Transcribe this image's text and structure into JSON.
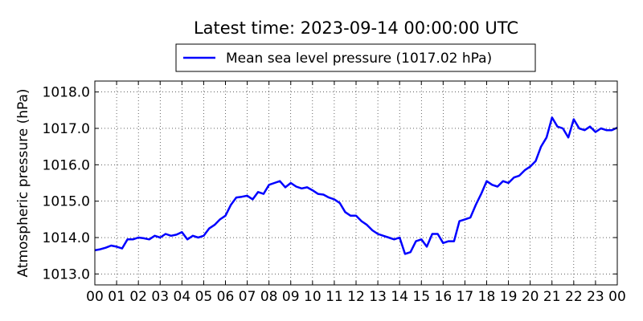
{
  "chart_data": {
    "type": "line",
    "title": "Latest time: 2023-09-14 00:00:00 UTC",
    "xlabel": "",
    "ylabel": "Atmospheric pressure (hPa)",
    "x_tick_labels": [
      "00",
      "01",
      "02",
      "03",
      "04",
      "05",
      "06",
      "07",
      "08",
      "09",
      "10",
      "11",
      "12",
      "13",
      "14",
      "15",
      "16",
      "17",
      "18",
      "19",
      "20",
      "21",
      "22",
      "23",
      "00"
    ],
    "y_tick_labels": [
      "1013.0",
      "1014.0",
      "1015.0",
      "1016.0",
      "1017.0",
      "1018.0"
    ],
    "x_unit": "hour (UTC)",
    "xlim": [
      0,
      24
    ],
    "ylim": [
      1012.7,
      1018.3
    ],
    "grid": true,
    "legend_position": "top-center",
    "series": [
      {
        "name": "Mean sea level pressure (1017.02 hPa)",
        "color": "#0000ff",
        "x": [
          0,
          0.25,
          0.5,
          0.75,
          1.0,
          1.25,
          1.5,
          1.75,
          2.0,
          2.25,
          2.5,
          2.75,
          3.0,
          3.25,
          3.5,
          3.75,
          4.0,
          4.25,
          4.5,
          4.75,
          5.0,
          5.25,
          5.5,
          5.75,
          6.0,
          6.25,
          6.5,
          6.75,
          7.0,
          7.25,
          7.5,
          7.75,
          8.0,
          8.25,
          8.5,
          8.75,
          9.0,
          9.25,
          9.5,
          9.75,
          10.0,
          10.25,
          10.5,
          10.75,
          11.0,
          11.25,
          11.5,
          11.75,
          12.0,
          12.25,
          12.5,
          12.75,
          13.0,
          13.25,
          13.5,
          13.75,
          14.0,
          14.25,
          14.5,
          14.75,
          15.0,
          15.25,
          15.5,
          15.75,
          16.0,
          16.25,
          16.5,
          16.75,
          17.0,
          17.25,
          17.5,
          17.75,
          18.0,
          18.25,
          18.5,
          18.75,
          19.0,
          19.25,
          19.5,
          19.75,
          20.0,
          20.25,
          20.5,
          20.75,
          21.0,
          21.25,
          21.5,
          21.75,
          22.0,
          22.25,
          22.5,
          22.75,
          23.0,
          23.25,
          23.5,
          23.75,
          24.0
        ],
        "values": [
          1013.65,
          1013.68,
          1013.72,
          1013.78,
          1013.75,
          1013.7,
          1013.95,
          1013.95,
          1014.0,
          1013.98,
          1013.95,
          1014.05,
          1014.0,
          1014.1,
          1014.05,
          1014.08,
          1014.15,
          1013.95,
          1014.05,
          1014.0,
          1014.05,
          1014.25,
          1014.35,
          1014.5,
          1014.6,
          1014.9,
          1015.1,
          1015.12,
          1015.15,
          1015.05,
          1015.25,
          1015.2,
          1015.45,
          1015.5,
          1015.55,
          1015.38,
          1015.5,
          1015.4,
          1015.35,
          1015.38,
          1015.3,
          1015.2,
          1015.18,
          1015.1,
          1015.05,
          1014.95,
          1014.7,
          1014.6,
          1014.6,
          1014.45,
          1014.35,
          1014.2,
          1014.1,
          1014.05,
          1014.0,
          1013.95,
          1014.0,
          1013.55,
          1013.6,
          1013.9,
          1013.95,
          1013.75,
          1014.1,
          1014.1,
          1013.85,
          1013.9,
          1013.9,
          1014.45,
          1014.5,
          1014.55,
          1014.9,
          1015.2,
          1015.55,
          1015.45,
          1015.4,
          1015.55,
          1015.5,
          1015.65,
          1015.7,
          1015.85,
          1015.95,
          1016.1,
          1016.5,
          1016.75,
          1017.3,
          1017.05,
          1017.0,
          1016.75,
          1017.25,
          1017.0,
          1016.95,
          1017.05,
          1016.9,
          1017.0,
          1016.95,
          1016.95,
          1017.02
        ]
      }
    ]
  }
}
